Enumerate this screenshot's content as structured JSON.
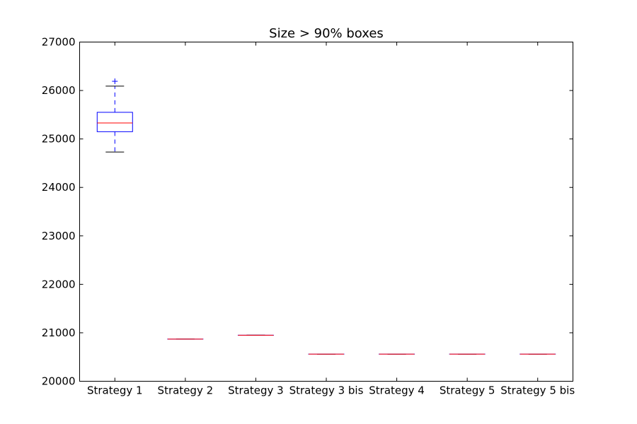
{
  "chart_data": {
    "type": "box",
    "title": "Size > 90% boxes",
    "xlabel": "",
    "ylabel": "",
    "ylim": [
      20000,
      27000
    ],
    "yticks": [
      20000,
      21000,
      22000,
      23000,
      24000,
      25000,
      26000,
      27000
    ],
    "grid": false,
    "categories": [
      "Strategy 1",
      "Strategy 2",
      "Strategy 3",
      "Strategy 3 bis",
      "Strategy 4",
      "Strategy 5",
      "Strategy 5 bis"
    ],
    "boxes": [
      {
        "whisker_low": 24730,
        "q1": 25150,
        "median": 25330,
        "q3": 25550,
        "whisker_high": 26090,
        "outliers": [
          26190
        ]
      },
      {
        "whisker_low": 20870,
        "q1": 20870,
        "median": 20870,
        "q3": 20870,
        "whisker_high": 20870,
        "outliers": []
      },
      {
        "whisker_low": 20950,
        "q1": 20950,
        "median": 20950,
        "q3": 20950,
        "whisker_high": 20950,
        "outliers": []
      },
      {
        "whisker_low": 20560,
        "q1": 20560,
        "median": 20560,
        "q3": 20560,
        "whisker_high": 20560,
        "outliers": []
      },
      {
        "whisker_low": 20560,
        "q1": 20560,
        "median": 20560,
        "q3": 20560,
        "whisker_high": 20560,
        "outliers": []
      },
      {
        "whisker_low": 20560,
        "q1": 20560,
        "median": 20560,
        "q3": 20560,
        "whisker_high": 20560,
        "outliers": []
      },
      {
        "whisker_low": 20560,
        "q1": 20560,
        "median": 20560,
        "q3": 20560,
        "whisker_high": 20560,
        "outliers": []
      }
    ],
    "colors": {
      "box": "#0000ff",
      "whisker": "#0000ff",
      "cap": "#000000",
      "median": "#ff0000",
      "outlier": "#0000ff"
    }
  }
}
